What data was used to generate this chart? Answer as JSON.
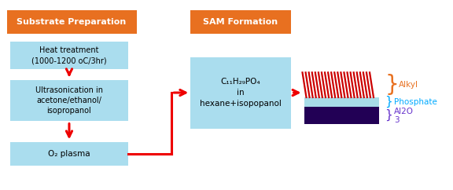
{
  "bg_color": "#ffffff",
  "box_color_light": "#aaddee",
  "box_color_orange": "#e87020",
  "title_substrate": "Substrate Preparation",
  "title_sam": "SAM Formation",
  "step1_text": "Heat treatment\n(1000-1200 oC/3hr)",
  "step2_text": "Ultrasonication in\nacetone/ethanol/\nisopropanol",
  "step3_text": "O₂ plasma",
  "sam_box_text": "C₁₁H₂₉PO₄\nin\nhexane+isopopanol",
  "alkyl_color": "#e87020",
  "phosphate_color": "#00aaff",
  "al2o3_color": "#6633cc",
  "alkyl_label": "Alkyl",
  "phosphate_label": "Phosphate",
  "al2o3_label": "Al2O\n3",
  "red_color": "#ee0000",
  "sam_bar_red": "#cc0000",
  "sam_bar_light": "#aaddee",
  "sam_bar_dark": "#220055"
}
